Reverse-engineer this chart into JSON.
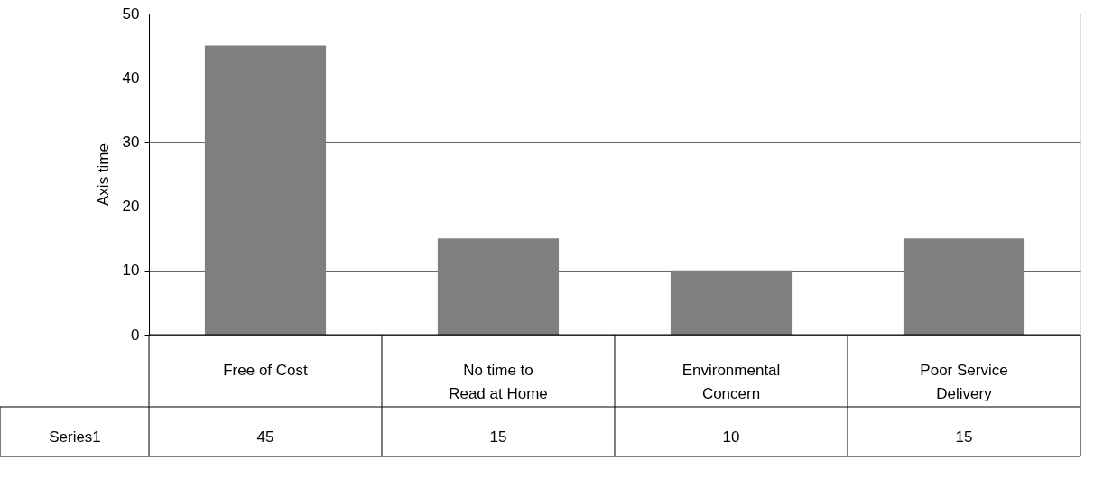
{
  "chart_data": {
    "type": "bar",
    "ylabel": "Axis time",
    "categories": [
      "Free of Cost",
      "No time to Read at Home",
      "Environmental Concern",
      "Poor Service Delivery"
    ],
    "series": [
      {
        "name": "Series1",
        "color": "#7f7f81",
        "values": [
          45,
          15,
          10,
          15
        ]
      }
    ],
    "ylim": [
      0,
      50
    ],
    "yticks": [
      0,
      10,
      20,
      30,
      40,
      50
    ],
    "grid": "y",
    "data_labels": true,
    "legend": false
  }
}
